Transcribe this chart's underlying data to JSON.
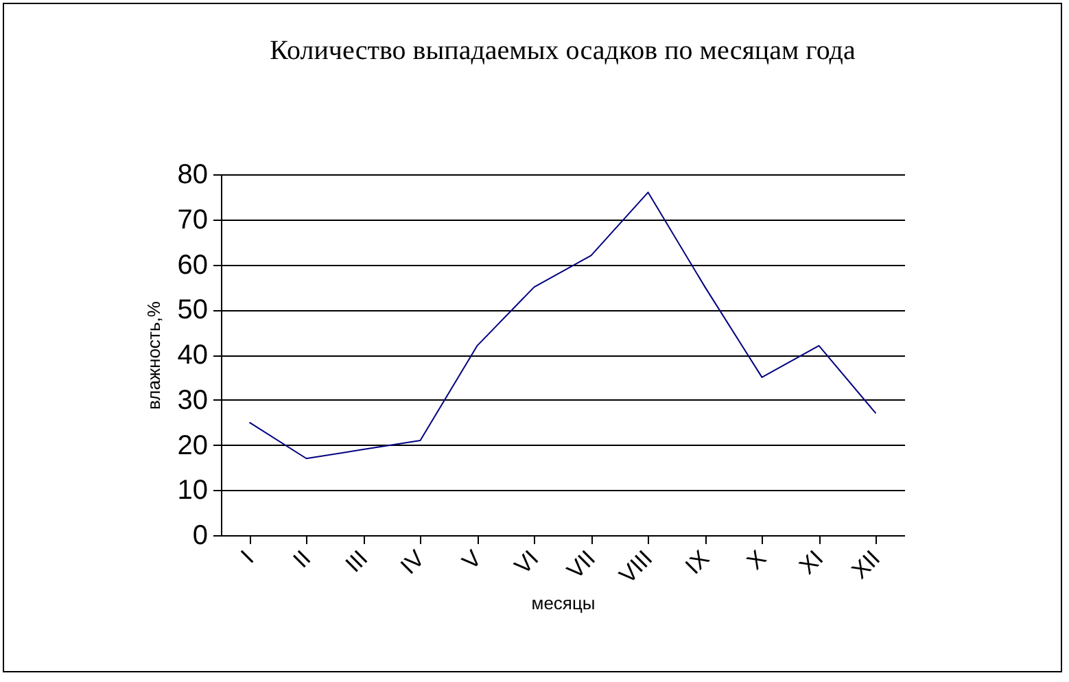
{
  "chart_data": {
    "type": "line",
    "title": "Количество выпадаемых осадков по месяцам года",
    "xlabel": "месяцы",
    "ylabel": "влажность,%",
    "categories": [
      "I",
      "II",
      "III",
      "IV",
      "V",
      "VI",
      "VII",
      "VIII",
      "IX",
      "X",
      "XI",
      "XII"
    ],
    "series": [
      {
        "color": "#000080",
        "values": [
          25,
          17,
          19,
          21,
          42,
          55,
          62,
          76,
          55,
          35,
          42,
          27
        ]
      }
    ],
    "ylim": [
      0,
      80
    ],
    "yticks": [
      0,
      10,
      20,
      30,
      40,
      50,
      60,
      70,
      80
    ],
    "grid": "y",
    "marker": "none",
    "line_style": "solid"
  }
}
